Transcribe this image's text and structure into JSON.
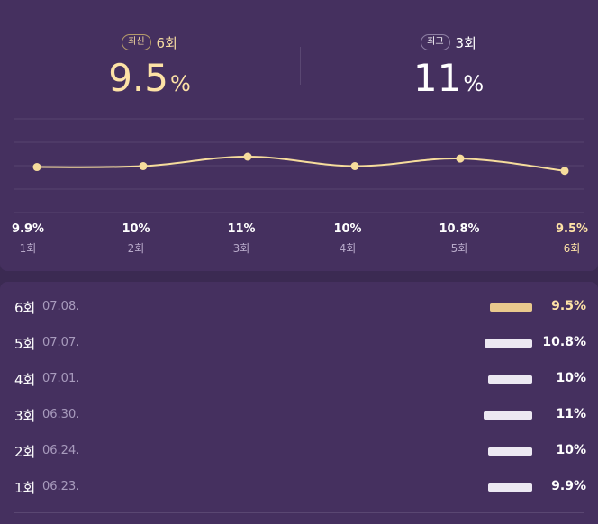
{
  "summary": {
    "latest": {
      "badge": "최신",
      "episode": "6회",
      "value": "9.5",
      "unit": "%"
    },
    "best": {
      "badge": "최고",
      "episode": "3회",
      "value": "11",
      "unit": "%"
    }
  },
  "colors": {
    "line": "#f6dc9c",
    "accent": "#fde2a6",
    "bar": "#ece8f2",
    "bar_latest": "#e9c98d"
  },
  "chart_data": {
    "type": "line",
    "categories": [
      "1회",
      "2회",
      "3회",
      "4회",
      "5회",
      "6회"
    ],
    "values": [
      9.9,
      10,
      11,
      10,
      10.8,
      9.5
    ],
    "value_labels": [
      "9.9%",
      "10%",
      "11%",
      "10%",
      "10.8%",
      "9.5%"
    ],
    "ylim": [
      5,
      15
    ],
    "grid": true,
    "title": "",
    "xlabel": "",
    "ylabel": ""
  },
  "list": [
    {
      "episode": "6회",
      "date": "07.08.",
      "value": 9.5,
      "label": "9.5%",
      "latest": true
    },
    {
      "episode": "5회",
      "date": "07.07.",
      "value": 10.8,
      "label": "10.8%",
      "latest": false
    },
    {
      "episode": "4회",
      "date": "07.01.",
      "value": 10,
      "label": "10%",
      "latest": false
    },
    {
      "episode": "3회",
      "date": "06.30.",
      "value": 11,
      "label": "11%",
      "latest": false
    },
    {
      "episode": "2회",
      "date": "06.24.",
      "value": 10,
      "label": "10%",
      "latest": false
    },
    {
      "episode": "1회",
      "date": "06.23.",
      "value": 9.9,
      "label": "9.9%",
      "latest": false
    }
  ]
}
